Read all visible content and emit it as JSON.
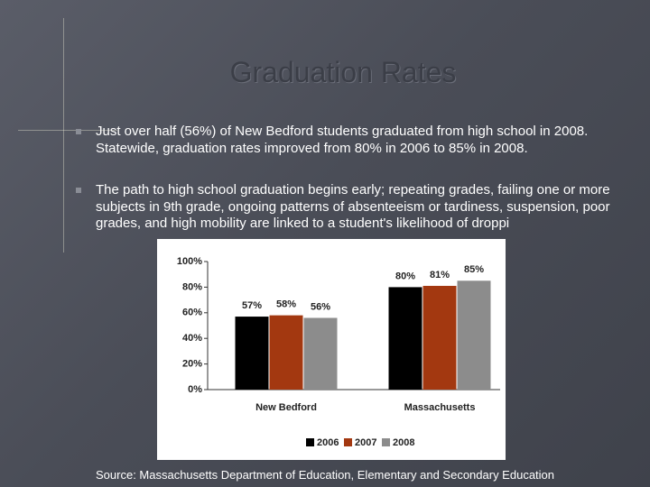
{
  "title": "Graduation Rates",
  "bullets": [
    "Just over half (56%) of New Bedford students graduated from high school in 2008.  Statewide, graduation rates improved from 80% in 2006 to 85% in 2008.",
    "The path to high school graduation begins early; repeating grades, failing one or more subjects in 9th grade, ongoing patterns of absenteeism or tardiness, suspension, poor grades, and high mobility are linked to a student's likelihood of droppi"
  ],
  "source": "Source:  Massachusetts Department of Education, Elementary and Secondary Education",
  "chart_data": {
    "type": "bar",
    "categories": [
      "New Bedford",
      "Massachusetts"
    ],
    "series": [
      {
        "name": "2006",
        "color": "#000000",
        "values": [
          57,
          80
        ],
        "value_labels": [
          "57%",
          "80%"
        ]
      },
      {
        "name": "2007",
        "color": "#a33810",
        "values": [
          58,
          81
        ],
        "value_labels": [
          "58%",
          "81%"
        ]
      },
      {
        "name": "2008",
        "color": "#8c8c8c",
        "values": [
          56,
          85
        ],
        "value_labels": [
          "56%",
          "85%"
        ]
      }
    ],
    "ylim": [
      0,
      100
    ],
    "yticks": [
      {
        "value": 0,
        "label": "0%"
      },
      {
        "value": 20,
        "label": "20%"
      },
      {
        "value": 40,
        "label": "40%"
      },
      {
        "value": 60,
        "label": "60%"
      },
      {
        "value": 80,
        "label": "80%"
      },
      {
        "value": 100,
        "label": "100%"
      }
    ],
    "legend": "bottom"
  }
}
